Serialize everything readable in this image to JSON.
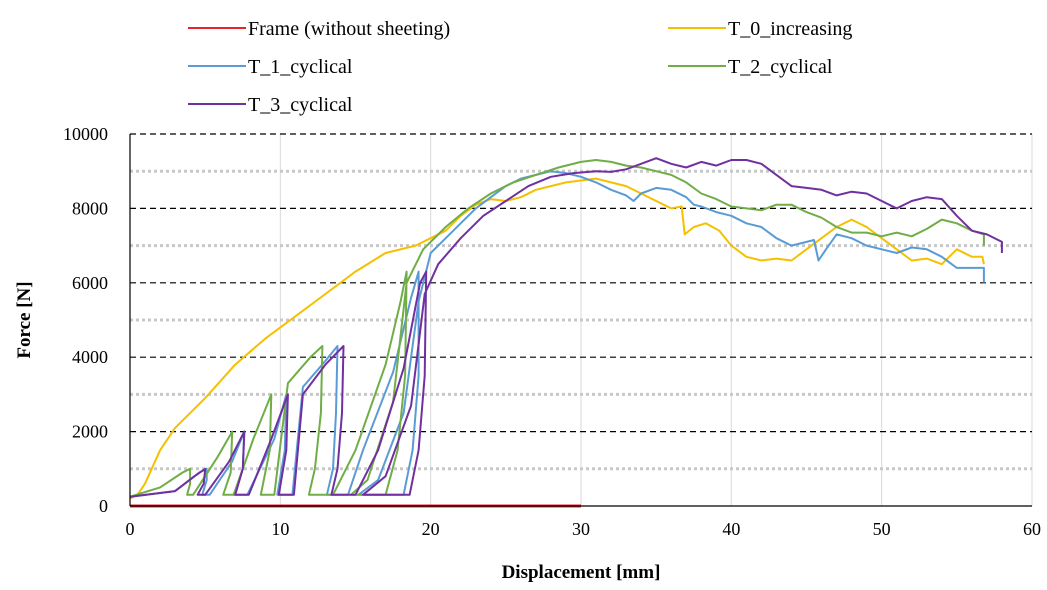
{
  "chart_data": {
    "type": "line",
    "title": "",
    "xlabel": "Displacement [mm]",
    "ylabel": "Force [N]",
    "xlim": [
      0,
      60
    ],
    "ylim": [
      0,
      10000
    ],
    "x_ticks": [
      "0",
      "10",
      "20",
      "30",
      "40",
      "50",
      "60"
    ],
    "y_ticks": [
      "0",
      "2000",
      "4000",
      "6000",
      "8000",
      "10000"
    ],
    "grid": "dashed major horizontal, dotted minor horizontal, light vertical",
    "legend_position": "top",
    "series": [
      {
        "name": "Frame (without sheeting)",
        "color": "#e8212b",
        "points": [
          [
            0,
            0
          ],
          [
            30,
            0
          ]
        ]
      },
      {
        "name": "T_0_increasing",
        "color": "#f5c000",
        "points": [
          [
            0,
            200
          ],
          [
            0.5,
            300
          ],
          [
            1,
            600
          ],
          [
            2,
            1500
          ],
          [
            3,
            2100
          ],
          [
            5,
            2900
          ],
          [
            7,
            3800
          ],
          [
            9,
            4500
          ],
          [
            11,
            5100
          ],
          [
            13,
            5700
          ],
          [
            15,
            6300
          ],
          [
            17,
            6800
          ],
          [
            19,
            7000
          ],
          [
            21,
            7400
          ],
          [
            22,
            7800
          ],
          [
            23,
            8100
          ],
          [
            24,
            8250
          ],
          [
            25,
            8200
          ],
          [
            26,
            8300
          ],
          [
            27,
            8500
          ],
          [
            28,
            8600
          ],
          [
            29,
            8700
          ],
          [
            30,
            8750
          ],
          [
            31,
            8800
          ],
          [
            32,
            8700
          ],
          [
            33,
            8600
          ],
          [
            34,
            8400
          ],
          [
            35,
            8200
          ],
          [
            36,
            8000
          ],
          [
            36.7,
            8050
          ],
          [
            36.9,
            7300
          ],
          [
            37.5,
            7500
          ],
          [
            38.3,
            7600
          ],
          [
            39.2,
            7400
          ],
          [
            40,
            7000
          ],
          [
            41,
            6700
          ],
          [
            42,
            6600
          ],
          [
            43,
            6650
          ],
          [
            44,
            6600
          ],
          [
            45,
            6900
          ],
          [
            46,
            7200
          ],
          [
            47,
            7500
          ],
          [
            48,
            7700
          ],
          [
            49,
            7500
          ],
          [
            50,
            7200
          ],
          [
            51,
            6900
          ],
          [
            52,
            6600
          ],
          [
            53,
            6650
          ],
          [
            54,
            6500
          ],
          [
            55,
            6900
          ],
          [
            56,
            6700
          ],
          [
            56.7,
            6700
          ],
          [
            56.8,
            6500
          ]
        ]
      },
      {
        "name": "T_1_cyclical",
        "color": "#5b9bd5",
        "points": [
          [
            0,
            250
          ],
          [
            3,
            400
          ],
          [
            4.6,
            900
          ],
          [
            5.1,
            1000
          ],
          [
            5.1,
            700
          ],
          [
            4.8,
            300
          ],
          [
            5.3,
            300
          ],
          [
            6.8,
            1200
          ],
          [
            7.6,
            2000
          ],
          [
            7.5,
            1000
          ],
          [
            6.9,
            300
          ],
          [
            7.8,
            300
          ],
          [
            9.6,
            1800
          ],
          [
            10.4,
            3000
          ],
          [
            10.3,
            1500
          ],
          [
            9.8,
            300
          ],
          [
            10.8,
            300
          ],
          [
            11.5,
            3200
          ],
          [
            13,
            3900
          ],
          [
            13.8,
            4300
          ],
          [
            13.7,
            2500
          ],
          [
            13.5,
            1000
          ],
          [
            13.1,
            300
          ],
          [
            14.5,
            300
          ],
          [
            15.5,
            1500
          ],
          [
            17.5,
            3600
          ],
          [
            18.7,
            5600
          ],
          [
            19.2,
            6300
          ],
          [
            19.2,
            3500
          ],
          [
            18.8,
            1500
          ],
          [
            18.2,
            300
          ],
          [
            15.2,
            300
          ],
          [
            16.5,
            700
          ],
          [
            18.2,
            2500
          ],
          [
            19.2,
            5500
          ],
          [
            20,
            6800
          ],
          [
            21,
            7200
          ],
          [
            22,
            7600
          ],
          [
            23,
            8000
          ],
          [
            24,
            8300
          ],
          [
            25,
            8600
          ],
          [
            26,
            8800
          ],
          [
            27,
            8900
          ],
          [
            28,
            9000
          ],
          [
            29,
            8950
          ],
          [
            30,
            8850
          ],
          [
            31,
            8700
          ],
          [
            32,
            8500
          ],
          [
            33,
            8350
          ],
          [
            33.5,
            8200
          ],
          [
            34,
            8400
          ],
          [
            35,
            8550
          ],
          [
            36,
            8500
          ],
          [
            37,
            8300
          ],
          [
            37.5,
            8100
          ],
          [
            38,
            8050
          ],
          [
            39,
            7900
          ],
          [
            40,
            7800
          ],
          [
            41,
            7600
          ],
          [
            42,
            7500
          ],
          [
            43,
            7200
          ],
          [
            44,
            7000
          ],
          [
            45,
            7100
          ],
          [
            45.5,
            7150
          ],
          [
            45.8,
            6600
          ],
          [
            46.3,
            6900
          ],
          [
            47,
            7300
          ],
          [
            48,
            7200
          ],
          [
            49,
            7000
          ],
          [
            50,
            6900
          ],
          [
            51,
            6800
          ],
          [
            52,
            6950
          ],
          [
            53,
            6900
          ],
          [
            54,
            6700
          ],
          [
            55,
            6400
          ],
          [
            56,
            6400
          ],
          [
            56.8,
            6400
          ],
          [
            56.8,
            6000
          ]
        ]
      },
      {
        "name": "T_2_cyclical",
        "color": "#70ad47",
        "points": [
          [
            0,
            250
          ],
          [
            2,
            500
          ],
          [
            3.5,
            900
          ],
          [
            4,
            1000
          ],
          [
            4,
            600
          ],
          [
            3.8,
            300
          ],
          [
            4.2,
            300
          ],
          [
            5.8,
            1300
          ],
          [
            6.8,
            2000
          ],
          [
            6.7,
            900
          ],
          [
            6.2,
            300
          ],
          [
            6.9,
            300
          ],
          [
            8.2,
            1800
          ],
          [
            9.4,
            3000
          ],
          [
            9.3,
            1500
          ],
          [
            8.7,
            300
          ],
          [
            9.6,
            300
          ],
          [
            10.5,
            3300
          ],
          [
            12,
            4000
          ],
          [
            12.8,
            4300
          ],
          [
            12.7,
            2500
          ],
          [
            12.3,
            1000
          ],
          [
            11.9,
            300
          ],
          [
            13.5,
            300
          ],
          [
            15,
            1500
          ],
          [
            17,
            3800
          ],
          [
            18,
            5500
          ],
          [
            18.4,
            6300
          ],
          [
            18.3,
            3500
          ],
          [
            17.8,
            1500
          ],
          [
            17,
            300
          ],
          [
            14.7,
            300
          ],
          [
            15.8,
            700
          ],
          [
            17.5,
            2800
          ],
          [
            18.4,
            6000
          ],
          [
            19.5,
            6900
          ],
          [
            21,
            7500
          ],
          [
            22.5,
            8000
          ],
          [
            24,
            8400
          ],
          [
            25.5,
            8700
          ],
          [
            27,
            8900
          ],
          [
            28.5,
            9100
          ],
          [
            30,
            9250
          ],
          [
            31,
            9300
          ],
          [
            32,
            9250
          ],
          [
            33,
            9150
          ],
          [
            34,
            9100
          ],
          [
            35,
            9000
          ],
          [
            36,
            8900
          ],
          [
            37,
            8700
          ],
          [
            38,
            8400
          ],
          [
            39,
            8250
          ],
          [
            40,
            8050
          ],
          [
            41,
            8000
          ],
          [
            42,
            7950
          ],
          [
            43,
            8100
          ],
          [
            44,
            8100
          ],
          [
            45,
            7900
          ],
          [
            46,
            7750
          ],
          [
            47,
            7500
          ],
          [
            48,
            7350
          ],
          [
            49,
            7350
          ],
          [
            50,
            7250
          ],
          [
            51,
            7350
          ],
          [
            52,
            7250
          ],
          [
            53,
            7450
          ],
          [
            54,
            7700
          ],
          [
            55,
            7600
          ],
          [
            56,
            7400
          ],
          [
            56.8,
            7300
          ],
          [
            56.8,
            7000
          ]
        ]
      },
      {
        "name": "T_3_cyclical",
        "color": "#7030a0",
        "points": [
          [
            0,
            250
          ],
          [
            3,
            400
          ],
          [
            4.3,
            800
          ],
          [
            5,
            1000
          ],
          [
            4.9,
            600
          ],
          [
            4.5,
            300
          ],
          [
            5,
            300
          ],
          [
            6.6,
            1200
          ],
          [
            7.6,
            2000
          ],
          [
            7.5,
            1000
          ],
          [
            7,
            300
          ],
          [
            7.9,
            300
          ],
          [
            9.4,
            1800
          ],
          [
            10.5,
            3000
          ],
          [
            10.4,
            1500
          ],
          [
            9.9,
            300
          ],
          [
            10.9,
            300
          ],
          [
            11.5,
            3000
          ],
          [
            13,
            3800
          ],
          [
            14.2,
            4300
          ],
          [
            14.1,
            2500
          ],
          [
            13.8,
            1000
          ],
          [
            13.4,
            300
          ],
          [
            15,
            300
          ],
          [
            16.5,
            1500
          ],
          [
            18.2,
            3700
          ],
          [
            19.3,
            6000
          ],
          [
            19.7,
            6300
          ],
          [
            19.6,
            3500
          ],
          [
            19.2,
            1500
          ],
          [
            18.6,
            300
          ],
          [
            15.5,
            300
          ],
          [
            17,
            800
          ],
          [
            18.7,
            2700
          ],
          [
            19.6,
            5700
          ],
          [
            20.5,
            6500
          ],
          [
            22,
            7200
          ],
          [
            23.5,
            7800
          ],
          [
            25,
            8200
          ],
          [
            26.5,
            8600
          ],
          [
            28,
            8850
          ],
          [
            29.5,
            8950
          ],
          [
            31,
            9000
          ],
          [
            32,
            8980
          ],
          [
            33,
            9050
          ],
          [
            34,
            9200
          ],
          [
            35,
            9350
          ],
          [
            36,
            9200
          ],
          [
            37,
            9100
          ],
          [
            38,
            9250
          ],
          [
            39,
            9150
          ],
          [
            40,
            9300
          ],
          [
            41,
            9300
          ],
          [
            42,
            9200
          ],
          [
            43,
            8900
          ],
          [
            44,
            8600
          ],
          [
            45,
            8550
          ],
          [
            46,
            8500
          ],
          [
            47,
            8350
          ],
          [
            48,
            8450
          ],
          [
            49,
            8400
          ],
          [
            50,
            8200
          ],
          [
            51,
            8000
          ],
          [
            52,
            8200
          ],
          [
            53,
            8300
          ],
          [
            54,
            8250
          ],
          [
            55,
            7800
          ],
          [
            56,
            7400
          ],
          [
            57,
            7300
          ],
          [
            58,
            7100
          ],
          [
            58,
            6800
          ]
        ]
      }
    ]
  }
}
